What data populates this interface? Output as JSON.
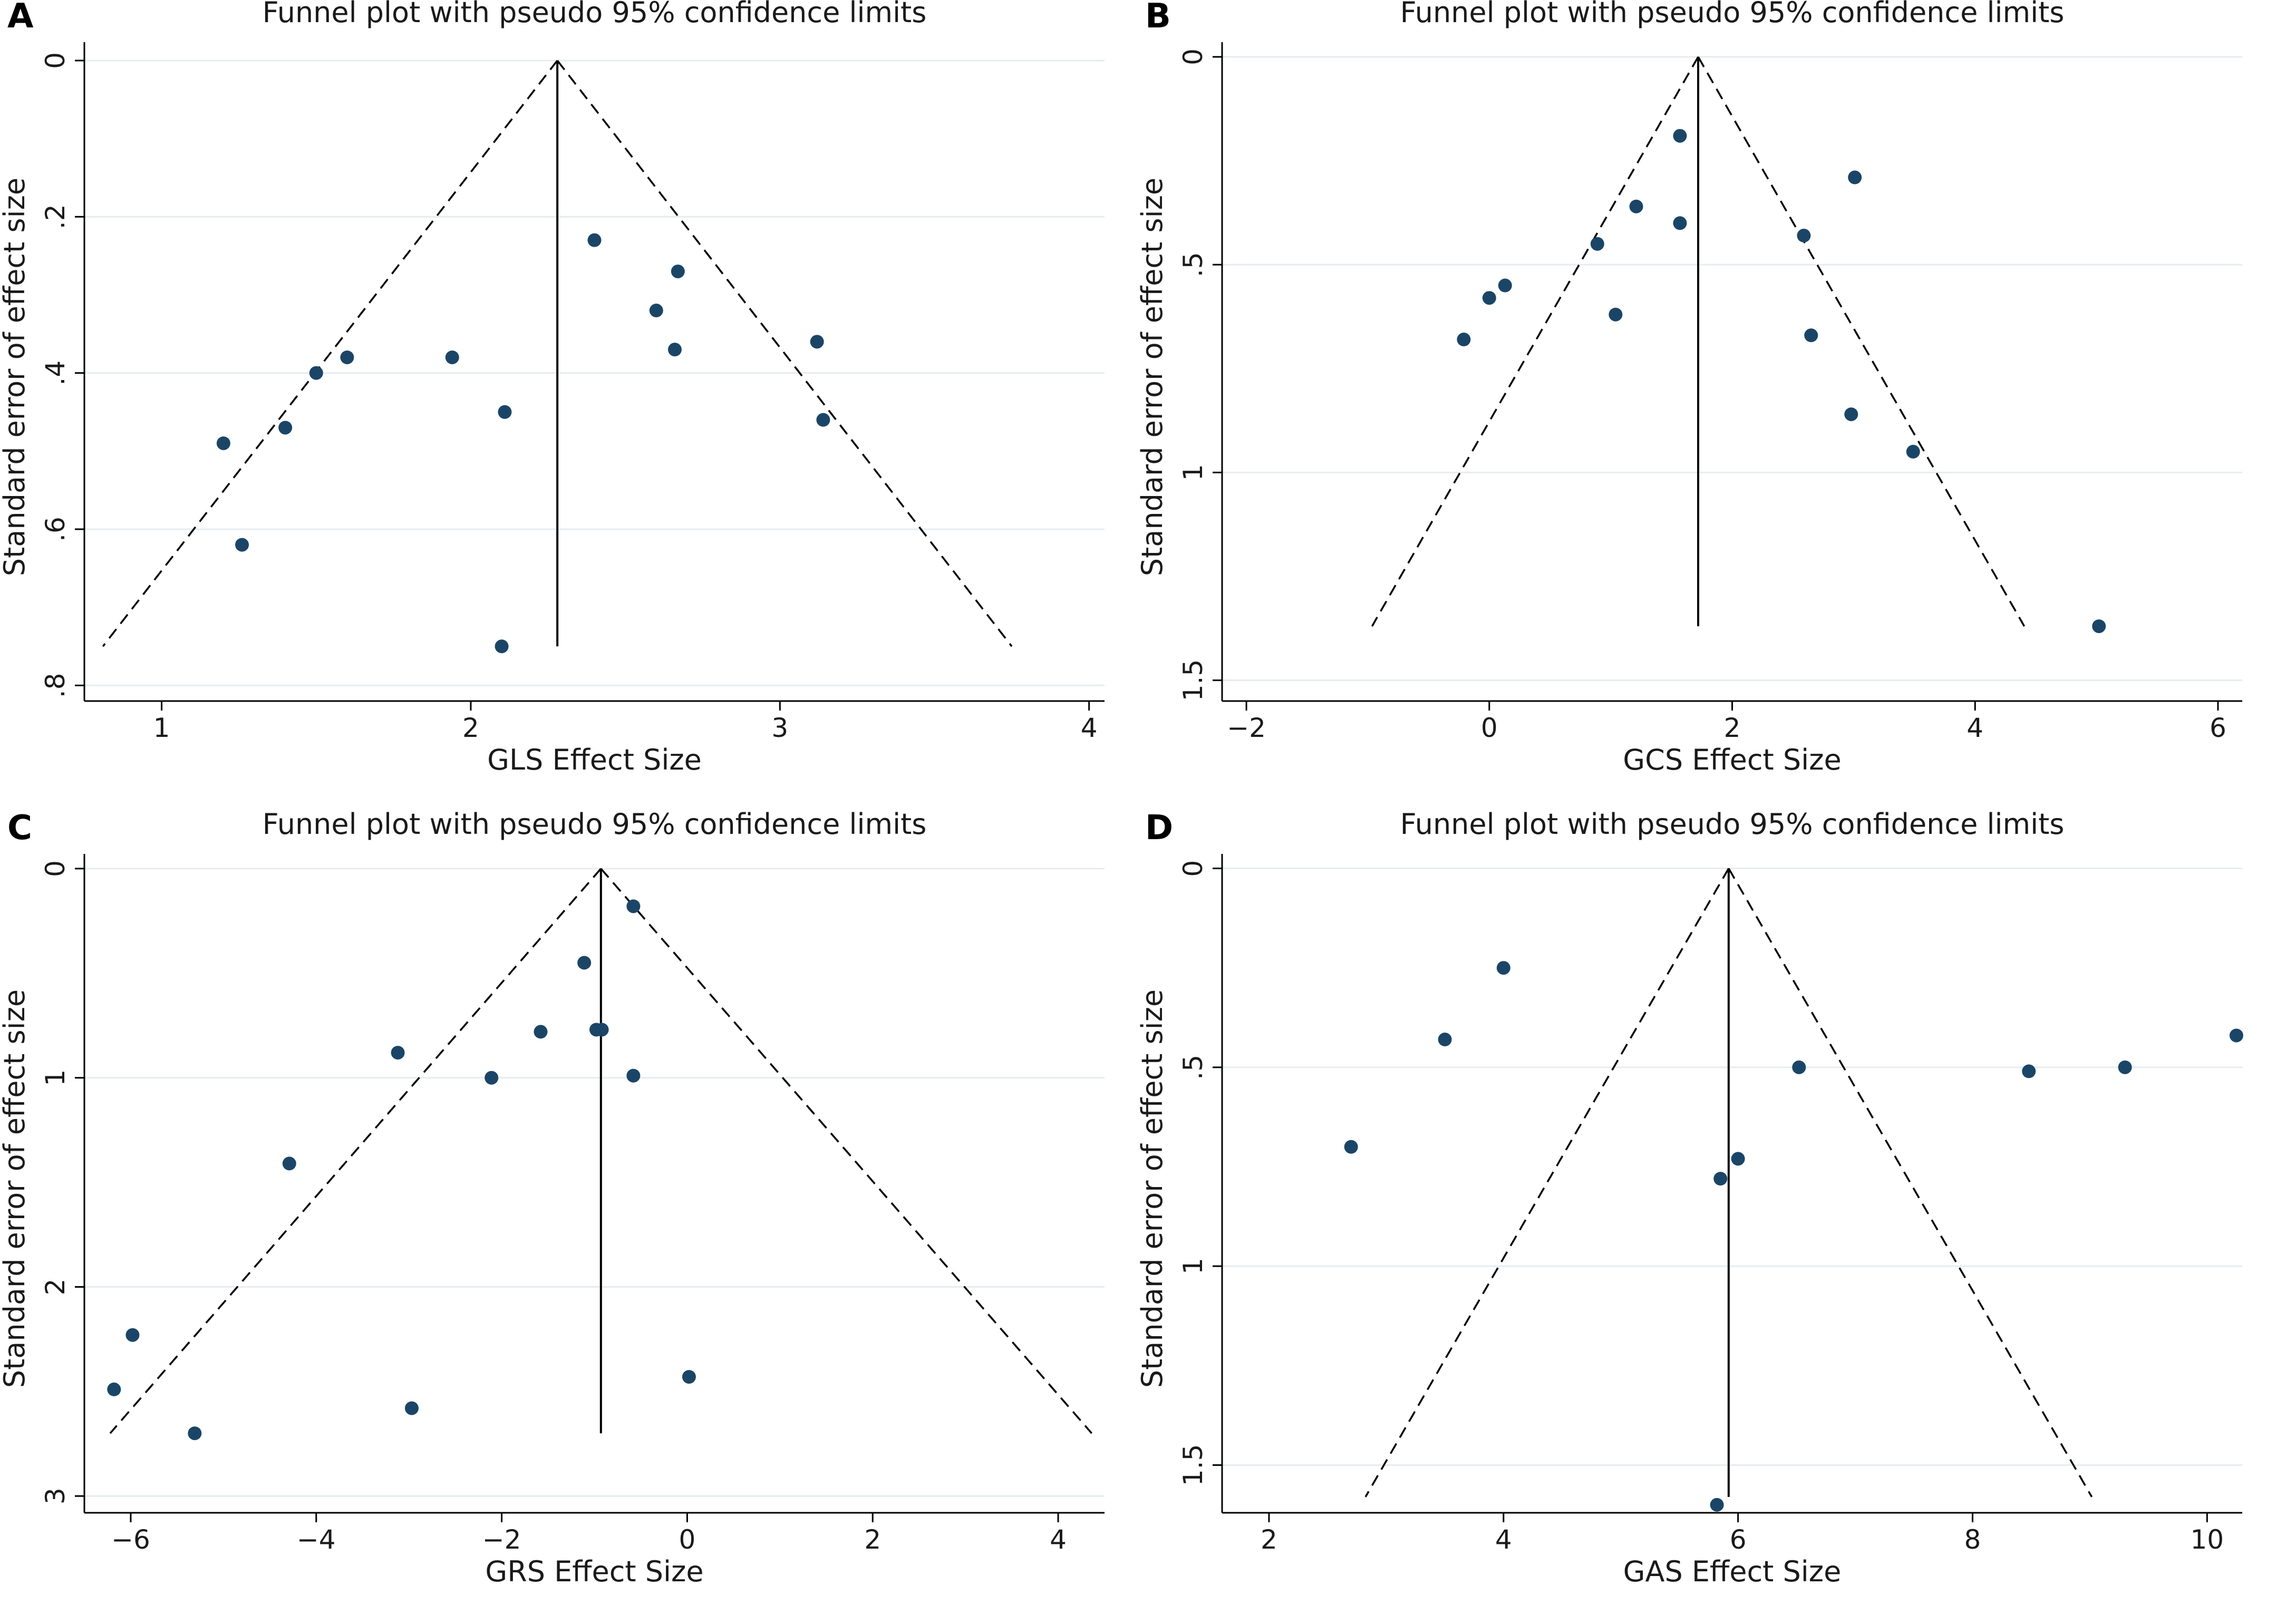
{
  "chart_data": [
    {
      "type": "scatter",
      "panel_label": "A",
      "title": "Funnel plot with pseudo 95% confidence limits",
      "xlabel": "GLS Effect Size",
      "ylabel": "Standard error of effect size",
      "xlim": [
        0.75,
        4.05
      ],
      "ylim": [
        0.82,
        -0.01
      ],
      "y_reversed": true,
      "xticks": [
        1,
        2,
        3,
        4
      ],
      "xtick_labels": [
        "1",
        "2",
        "3",
        "4"
      ],
      "yticks": [
        0,
        0.2,
        0.4,
        0.6,
        0.8
      ],
      "ytick_labels": [
        "0",
        ".2",
        ".4",
        ".6",
        ".8"
      ],
      "grid": true,
      "pooled_effect": 2.28,
      "funnel_se_max": 0.75,
      "points": [
        {
          "x": 2.4,
          "y": 0.23
        },
        {
          "x": 2.67,
          "y": 0.27
        },
        {
          "x": 2.6,
          "y": 0.32
        },
        {
          "x": 2.66,
          "y": 0.37
        },
        {
          "x": 3.12,
          "y": 0.36
        },
        {
          "x": 3.14,
          "y": 0.46
        },
        {
          "x": 1.94,
          "y": 0.38
        },
        {
          "x": 2.11,
          "y": 0.45
        },
        {
          "x": 1.6,
          "y": 0.38
        },
        {
          "x": 1.5,
          "y": 0.4
        },
        {
          "x": 1.4,
          "y": 0.47
        },
        {
          "x": 1.2,
          "y": 0.49
        },
        {
          "x": 1.26,
          "y": 0.62
        },
        {
          "x": 2.1,
          "y": 0.75
        }
      ]
    },
    {
      "type": "scatter",
      "panel_label": "B",
      "title": "Funnel plot with pseudo 95% confidence limits",
      "xlabel": "GCS Effect Size",
      "ylabel": "Standard error of effect size",
      "xlim": [
        -2.2,
        6.2
      ],
      "ylim": [
        1.55,
        -0.01
      ],
      "y_reversed": true,
      "xticks": [
        -2,
        0,
        2,
        4,
        6
      ],
      "xtick_labels": [
        "−2",
        "0",
        "2",
        "4",
        "6"
      ],
      "yticks": [
        0,
        0.5,
        1,
        1.5
      ],
      "ytick_labels": [
        "0",
        ".5",
        "1",
        "1.5"
      ],
      "grid": true,
      "pooled_effect": 1.72,
      "funnel_se_max": 1.37,
      "points": [
        {
          "x": 1.57,
          "y": 0.19
        },
        {
          "x": 3.01,
          "y": 0.29
        },
        {
          "x": 1.21,
          "y": 0.36
        },
        {
          "x": 1.57,
          "y": 0.4
        },
        {
          "x": 0.89,
          "y": 0.45
        },
        {
          "x": 2.59,
          "y": 0.43
        },
        {
          "x": 0.13,
          "y": 0.55
        },
        {
          "x": 0.0,
          "y": 0.58
        },
        {
          "x": 1.04,
          "y": 0.62
        },
        {
          "x": -0.21,
          "y": 0.68
        },
        {
          "x": 2.65,
          "y": 0.67
        },
        {
          "x": 2.98,
          "y": 0.86
        },
        {
          "x": 3.49,
          "y": 0.95
        },
        {
          "x": 5.02,
          "y": 1.37
        }
      ]
    },
    {
      "type": "scatter",
      "panel_label": "C",
      "title": "Funnel plot with pseudo 95% confidence limits",
      "xlabel": "GRS Effect Size",
      "ylabel": "Standard error of effect size",
      "xlim": [
        -6.5,
        4.5
      ],
      "ylim": [
        3.08,
        -0.02
      ],
      "y_reversed": true,
      "xticks": [
        -6,
        -4,
        -2,
        0,
        2,
        4
      ],
      "xtick_labels": [
        "−6",
        "−4",
        "−2",
        "0",
        "2",
        "4"
      ],
      "yticks": [
        0,
        1,
        2,
        3
      ],
      "ytick_labels": [
        "0",
        "1",
        "2",
        "3"
      ],
      "grid": true,
      "pooled_effect": -0.93,
      "funnel_se_max": 2.7,
      "points": [
        {
          "x": -0.58,
          "y": 0.18
        },
        {
          "x": -1.11,
          "y": 0.45
        },
        {
          "x": -3.12,
          "y": 0.88
        },
        {
          "x": -1.58,
          "y": 0.78
        },
        {
          "x": -0.98,
          "y": 0.77
        },
        {
          "x": -0.92,
          "y": 0.77
        },
        {
          "x": -2.11,
          "y": 1.0
        },
        {
          "x": -0.58,
          "y": 0.99
        },
        {
          "x": -4.29,
          "y": 1.41
        },
        {
          "x": -5.98,
          "y": 2.23
        },
        {
          "x": -6.18,
          "y": 2.49
        },
        {
          "x": -2.97,
          "y": 2.58
        },
        {
          "x": -5.31,
          "y": 2.7
        },
        {
          "x": 0.02,
          "y": 2.43
        }
      ]
    },
    {
      "type": "scatter",
      "panel_label": "D",
      "title": "Funnel plot with pseudo 95% confidence limits",
      "xlabel": "GAS Effect Size",
      "ylabel": "Standard error of effect size",
      "xlim": [
        1.6,
        10.3
      ],
      "ylim": [
        1.62,
        -0.01
      ],
      "y_reversed": true,
      "xticks": [
        2,
        4,
        6,
        8,
        10
      ],
      "xtick_labels": [
        "2",
        "4",
        "6",
        "8",
        "10"
      ],
      "yticks": [
        0,
        0.5,
        1,
        1.5
      ],
      "ytick_labels": [
        "0",
        ".5",
        "1",
        "1.5"
      ],
      "grid": true,
      "pooled_effect": 5.92,
      "funnel_se_max": 1.58,
      "points": [
        {
          "x": 4.0,
          "y": 0.25
        },
        {
          "x": 3.5,
          "y": 0.43
        },
        {
          "x": 2.7,
          "y": 0.7
        },
        {
          "x": 6.52,
          "y": 0.5
        },
        {
          "x": 8.48,
          "y": 0.51
        },
        {
          "x": 9.3,
          "y": 0.5
        },
        {
          "x": 10.25,
          "y": 0.42
        },
        {
          "x": 6.0,
          "y": 0.73
        },
        {
          "x": 5.85,
          "y": 0.78
        },
        {
          "x": 5.82,
          "y": 1.6
        }
      ]
    }
  ]
}
